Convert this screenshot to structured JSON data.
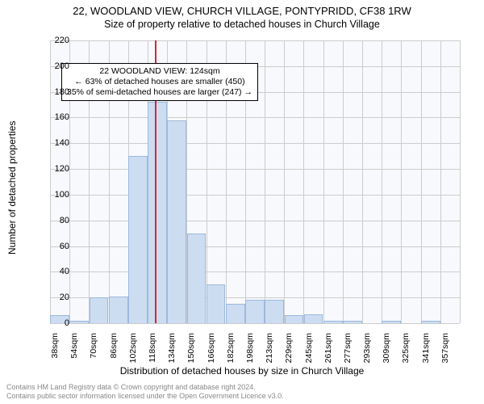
{
  "chart": {
    "type": "histogram",
    "title_line1": "22, WOODLAND VIEW, CHURCH VILLAGE, PONTYPRIDD, CF38 1RW",
    "title_line2": "Size of property relative to detached houses in Church Village",
    "title_fontsize": 13,
    "subtitle_fontsize": 12.5,
    "panel_bg": "#f8f9fc",
    "plot_bg": "#ffffff",
    "grid_color": "#cccccc",
    "axis_color": "#333333",
    "bar_fill": "#ccddf2",
    "bar_stroke": "#9db8dd",
    "ref_line_color": "#d9262c",
    "x_label": "Distribution of detached houses by size in Church Village",
    "y_label": "Number of detached properties",
    "x_label_fontsize": 12,
    "y_label_fontsize": 12,
    "tick_fontsize": 11,
    "x_tick_rotation": -90,
    "ylim": [
      0,
      220
    ],
    "ytick_step": 20,
    "y_ticks": [
      0,
      20,
      40,
      60,
      80,
      100,
      120,
      140,
      160,
      180,
      200,
      220
    ],
    "xlim_bins": 21,
    "x_tick_labels": [
      "38sqm",
      "54sqm",
      "70sqm",
      "86sqm",
      "102sqm",
      "118sqm",
      "134sqm",
      "150sqm",
      "166sqm",
      "182sqm",
      "198sqm",
      "213sqm",
      "229sqm",
      "245sqm",
      "261sqm",
      "277sqm",
      "293sqm",
      "309sqm",
      "325sqm",
      "341sqm",
      "357sqm"
    ],
    "bar_values": [
      6,
      2,
      20,
      21,
      130,
      172,
      158,
      70,
      30,
      15,
      18,
      18,
      6,
      7,
      2,
      2,
      0,
      2,
      0,
      2,
      0
    ],
    "bar_width_ratio": 0.98,
    "reference_value_sqm": 124,
    "annotation": {
      "lines": [
        "22 WOODLAND VIEW: 124sqm",
        "← 63% of detached houses are smaller (450)",
        "35% of semi-detached houses are larger (247) →"
      ],
      "fontsize": 10.5,
      "border_color": "#000000",
      "bg": "#ffffff",
      "pos_bin_center": 4.5,
      "pos_y_value": 200
    },
    "attribution": {
      "line1": "Contains HM Land Registry data © Crown copyright and database right 2024.",
      "line2": "Contains public sector information licensed under the Open Government Licence v3.0.",
      "color": "#888888",
      "fontsize": 9
    }
  }
}
